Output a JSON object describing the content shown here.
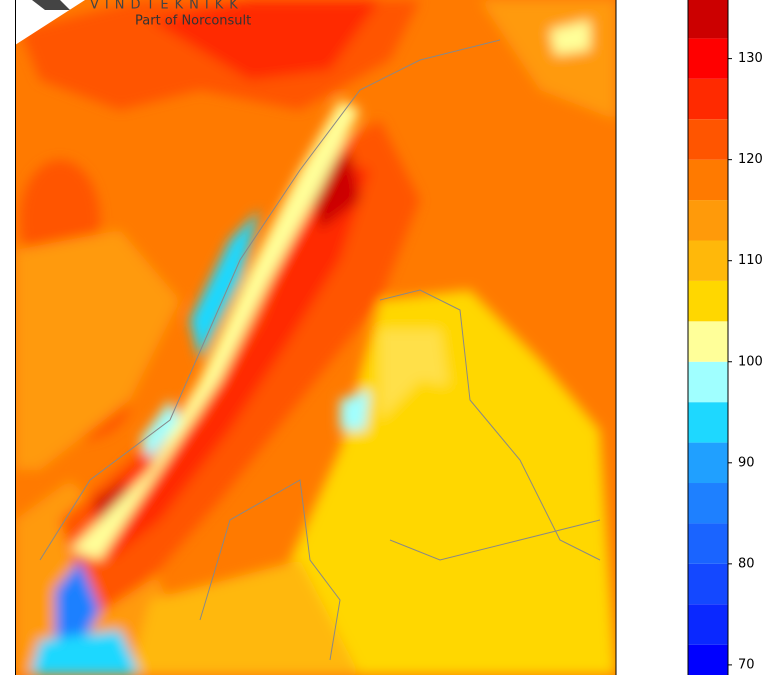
{
  "logo": {
    "name": "VINDTEKNIKK",
    "tagline": "Part of Norconsult"
  },
  "colorbar": {
    "bins": [
      68,
      72,
      76,
      80,
      84,
      88,
      92,
      96,
      100,
      104,
      108,
      112,
      116,
      120,
      124,
      128,
      132,
      136
    ],
    "colors": [
      "#0000ff",
      "#0a28ff",
      "#1448ff",
      "#1a64ff",
      "#1e80ff",
      "#20a0ff",
      "#1ed8ff",
      "#a0ffff",
      "#ffff99",
      "#ffd700",
      "#ffb80a",
      "#ff9a0a",
      "#ff7a00",
      "#ff5500",
      "#ff2a00",
      "#ff0000",
      "#cc0000"
    ],
    "ylim": [
      69,
      135.8
    ],
    "yticks": [
      70,
      80,
      90,
      100,
      110,
      120,
      130
    ]
  }
}
